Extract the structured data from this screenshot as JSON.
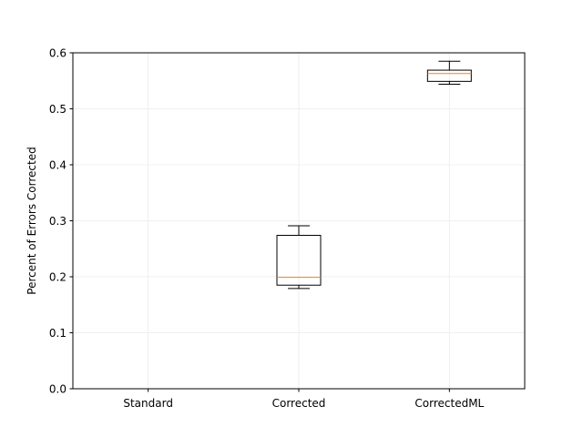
{
  "chart_data": {
    "type": "box",
    "title": "",
    "xlabel": "",
    "ylabel": "Percent of Errors Corrected",
    "ylim": [
      0,
      0.6
    ],
    "yticks": [
      0.0,
      0.1,
      0.2,
      0.3,
      0.4,
      0.5,
      0.6
    ],
    "ytick_labels": [
      "0.0",
      "0.1",
      "0.2",
      "0.3",
      "0.4",
      "0.5",
      "0.6"
    ],
    "grid": true,
    "categories": [
      "Standard",
      "Corrected",
      "CorrectedML"
    ],
    "boxes": [
      {
        "category": "Standard",
        "whisker_low": 0.0,
        "q1": 0.0,
        "median": 0.0,
        "q3": 0.0,
        "whisker_high": 0.0
      },
      {
        "category": "Corrected",
        "whisker_low": 0.179,
        "q1": 0.185,
        "median": 0.199,
        "q3": 0.274,
        "whisker_high": 0.291
      },
      {
        "category": "CorrectedML",
        "whisker_low": 0.544,
        "q1": 0.549,
        "median": 0.563,
        "q3": 0.569,
        "whisker_high": 0.585
      }
    ],
    "colors": {
      "box": "#000000",
      "median": "#ff7f0e",
      "grid": "#ebebeb"
    }
  }
}
